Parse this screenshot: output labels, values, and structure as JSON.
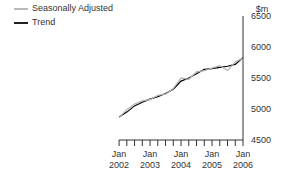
{
  "chart_data": {
    "type": "line",
    "y_label": "$m",
    "legend": "upper left",
    "categories": [
      "Jan 2002",
      null,
      null,
      null,
      "Jan 2003",
      null,
      null,
      null,
      "Jan 2004",
      null,
      null,
      null,
      "Jan 2005",
      null,
      null,
      null,
      "Jan 2006"
    ],
    "series": [
      {
        "name": "Trend",
        "color": "#000000",
        "values": [
          4870,
          4950,
          5050,
          5110,
          5160,
          5200,
          5250,
          5320,
          5450,
          5500,
          5570,
          5640,
          5650,
          5670,
          5690,
          5720,
          5830
        ]
      },
      {
        "name": "Seasonally Adjusted",
        "color": "#b0b0b0",
        "values": [
          4860,
          4990,
          5080,
          5130,
          5150,
          5220,
          5240,
          5330,
          5500,
          5480,
          5600,
          5620,
          5660,
          5700,
          5620,
          5760,
          5820
        ]
      }
    ],
    "ylim": [
      4500,
      6500
    ],
    "yticks": [
      4500,
      5000,
      5500,
      6000,
      6500
    ],
    "grid": false
  }
}
